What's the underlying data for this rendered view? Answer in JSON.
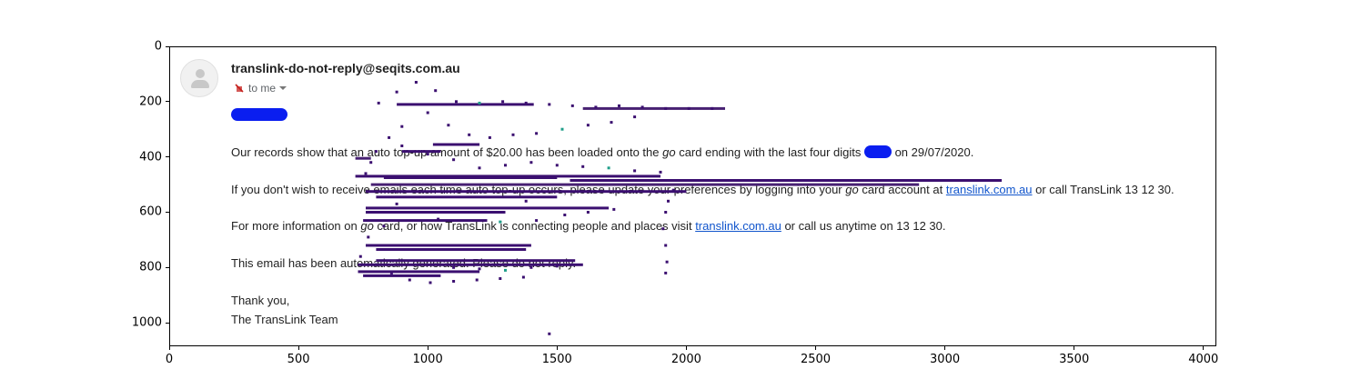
{
  "chart_data": {
    "type": "scatter",
    "title": "",
    "xlabel": "",
    "ylabel": "",
    "xlim": [
      0,
      4050
    ],
    "ylim": [
      1085,
      0
    ],
    "y_inverted": true,
    "grid": false,
    "x_ticks": [
      "0",
      "500",
      "1000",
      "1500",
      "2000",
      "2500",
      "3000",
      "3500",
      "4000"
    ],
    "y_ticks": [
      "0",
      "200",
      "400",
      "600",
      "800",
      "1000"
    ],
    "image_colors": [
      "#3b0f70",
      "#482173",
      "#1f9e89",
      "#35b779"
    ],
    "overlay_points": [
      {
        "x": 810,
        "y": 205
      },
      {
        "x": 880,
        "y": 165
      },
      {
        "x": 955,
        "y": 130
      },
      {
        "x": 1030,
        "y": 160
      },
      {
        "x": 1110,
        "y": 200
      },
      {
        "x": 1200,
        "y": 205
      },
      {
        "x": 1290,
        "y": 200
      },
      {
        "x": 1380,
        "y": 205
      },
      {
        "x": 1470,
        "y": 210
      },
      {
        "x": 1560,
        "y": 215
      },
      {
        "x": 1650,
        "y": 220
      },
      {
        "x": 1740,
        "y": 215
      },
      {
        "x": 1830,
        "y": 220
      },
      {
        "x": 1920,
        "y": 225
      },
      {
        "x": 2010,
        "y": 225
      },
      {
        "x": 2100,
        "y": 225
      },
      {
        "x": 1000,
        "y": 240
      },
      {
        "x": 1080,
        "y": 285
      },
      {
        "x": 1160,
        "y": 320
      },
      {
        "x": 1240,
        "y": 330
      },
      {
        "x": 1330,
        "y": 320
      },
      {
        "x": 1420,
        "y": 315
      },
      {
        "x": 1520,
        "y": 300
      },
      {
        "x": 1620,
        "y": 285
      },
      {
        "x": 1710,
        "y": 275
      },
      {
        "x": 1800,
        "y": 255
      },
      {
        "x": 900,
        "y": 290
      },
      {
        "x": 850,
        "y": 330
      },
      {
        "x": 800,
        "y": 380
      },
      {
        "x": 780,
        "y": 420
      },
      {
        "x": 760,
        "y": 460
      },
      {
        "x": 900,
        "y": 360
      },
      {
        "x": 1000,
        "y": 390
      },
      {
        "x": 1100,
        "y": 410
      },
      {
        "x": 1200,
        "y": 440
      },
      {
        "x": 1300,
        "y": 430
      },
      {
        "x": 1400,
        "y": 420
      },
      {
        "x": 1500,
        "y": 430
      },
      {
        "x": 1600,
        "y": 435
      },
      {
        "x": 1700,
        "y": 440
      },
      {
        "x": 1800,
        "y": 450
      },
      {
        "x": 1900,
        "y": 455
      },
      {
        "x": 1950,
        "y": 520
      },
      {
        "x": 1930,
        "y": 560
      },
      {
        "x": 1920,
        "y": 600
      },
      {
        "x": 1910,
        "y": 660
      },
      {
        "x": 1920,
        "y": 720
      },
      {
        "x": 1925,
        "y": 780
      },
      {
        "x": 1920,
        "y": 820
      },
      {
        "x": 1380,
        "y": 560
      },
      {
        "x": 1420,
        "y": 630
      },
      {
        "x": 1530,
        "y": 610
      },
      {
        "x": 1620,
        "y": 600
      },
      {
        "x": 1720,
        "y": 590
      },
      {
        "x": 1160,
        "y": 600
      },
      {
        "x": 1040,
        "y": 625
      },
      {
        "x": 1280,
        "y": 635
      },
      {
        "x": 770,
        "y": 690
      },
      {
        "x": 830,
        "y": 650
      },
      {
        "x": 880,
        "y": 570
      },
      {
        "x": 740,
        "y": 760
      },
      {
        "x": 800,
        "y": 790
      },
      {
        "x": 860,
        "y": 820
      },
      {
        "x": 930,
        "y": 845
      },
      {
        "x": 1010,
        "y": 855
      },
      {
        "x": 1100,
        "y": 850
      },
      {
        "x": 1190,
        "y": 845
      },
      {
        "x": 1280,
        "y": 840
      },
      {
        "x": 1370,
        "y": 835
      },
      {
        "x": 1470,
        "y": 1040
      },
      {
        "x": 1000,
        "y": 790
      },
      {
        "x": 1100,
        "y": 800
      },
      {
        "x": 1200,
        "y": 805
      },
      {
        "x": 1300,
        "y": 810
      },
      {
        "x": 1400,
        "y": 800
      },
      {
        "x": 1500,
        "y": 795
      }
    ],
    "overlay_segments": [
      {
        "x1": 830,
        "x2": 1500,
        "y": 475
      },
      {
        "x1": 1550,
        "x2": 3220,
        "y": 485
      },
      {
        "x1": 720,
        "x2": 1900,
        "y": 470
      },
      {
        "x1": 780,
        "x2": 2900,
        "y": 500
      },
      {
        "x1": 760,
        "x2": 2000,
        "y": 525
      },
      {
        "x1": 800,
        "x2": 1500,
        "y": 545
      },
      {
        "x1": 760,
        "x2": 1700,
        "y": 585
      },
      {
        "x1": 760,
        "x2": 1300,
        "y": 600
      },
      {
        "x1": 750,
        "x2": 1230,
        "y": 630
      },
      {
        "x1": 880,
        "x2": 1410,
        "y": 210
      },
      {
        "x1": 1600,
        "x2": 2150,
        "y": 225
      },
      {
        "x1": 760,
        "x2": 1400,
        "y": 720
      },
      {
        "x1": 800,
        "x2": 1380,
        "y": 735
      },
      {
        "x1": 800,
        "x2": 1570,
        "y": 775
      },
      {
        "x1": 730,
        "x2": 1600,
        "y": 790
      },
      {
        "x1": 730,
        "x2": 1200,
        "y": 815
      },
      {
        "x1": 750,
        "x2": 1050,
        "y": 830
      },
      {
        "x1": 720,
        "x2": 780,
        "y": 405
      },
      {
        "x1": 900,
        "x2": 1050,
        "y": 380
      },
      {
        "x1": 1020,
        "x2": 1200,
        "y": 355
      }
    ]
  },
  "email": {
    "sender": "translink-do-not-reply@seqits.com.au",
    "to_label": "to me",
    "para1_before": "Our records show that an auto top-up amount of $20.00 has been loaded onto the ",
    "para1_go": "go",
    "para1_mid": " card ending with the last four digits ",
    "para1_after": " on 29/07/2020.",
    "para2_before": "If you don't wish to receive emails each time auto top-up occurs, please update your preferences by logging into your ",
    "para2_go": "go",
    "para2_mid": " card account at ",
    "para2_link": "translink.com.au",
    "para2_after": " or call TransLink 13 12 30.",
    "para3_before": "For more information on ",
    "para3_go": "go",
    "para3_mid": " card, or how TransLink is connecting people and places visit ",
    "para3_link": "translink.com.au",
    "para3_after": " or call us anytime on 13 12 30.",
    "para4": "This email has been automatically generated. Please do not reply.",
    "thanks": "Thank you,",
    "signature": "The TransLink Team"
  }
}
